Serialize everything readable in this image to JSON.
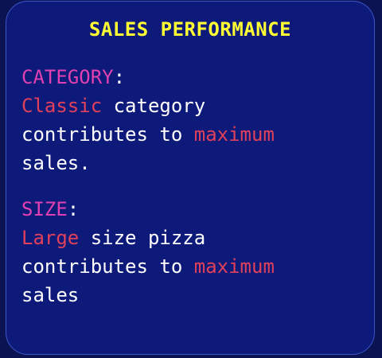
{
  "card": {
    "title": "SALES PERFORMANCE",
    "sections": [
      {
        "heading": "CATEGORY",
        "colon": ":",
        "lines": [
          [
            {
              "text": "Classic",
              "style": "hl"
            },
            {
              "text": " category",
              "style": "plain"
            }
          ],
          [
            {
              "text": "contributes to ",
              "style": "plain"
            },
            {
              "text": "maximum",
              "style": "hl"
            }
          ],
          [
            {
              "text": "sales.",
              "style": "plain"
            }
          ]
        ]
      },
      {
        "heading": "SIZE",
        "colon": ":",
        "lines": [
          [
            {
              "text": "Large",
              "style": "hl"
            },
            {
              "text": " size pizza",
              "style": "plain"
            }
          ],
          [
            {
              "text": "contributes to ",
              "style": "plain"
            },
            {
              "text": "maximum",
              "style": "hl"
            }
          ],
          [
            {
              "text": "sales",
              "style": "plain"
            }
          ]
        ]
      }
    ]
  },
  "colors": {
    "background": "#0b1352",
    "card": "#0e1a7a",
    "card_border": "#3b56c8",
    "title": "#ffff33",
    "heading": "#e040b0",
    "highlight": "#e0405a",
    "text": "#ffffff"
  }
}
